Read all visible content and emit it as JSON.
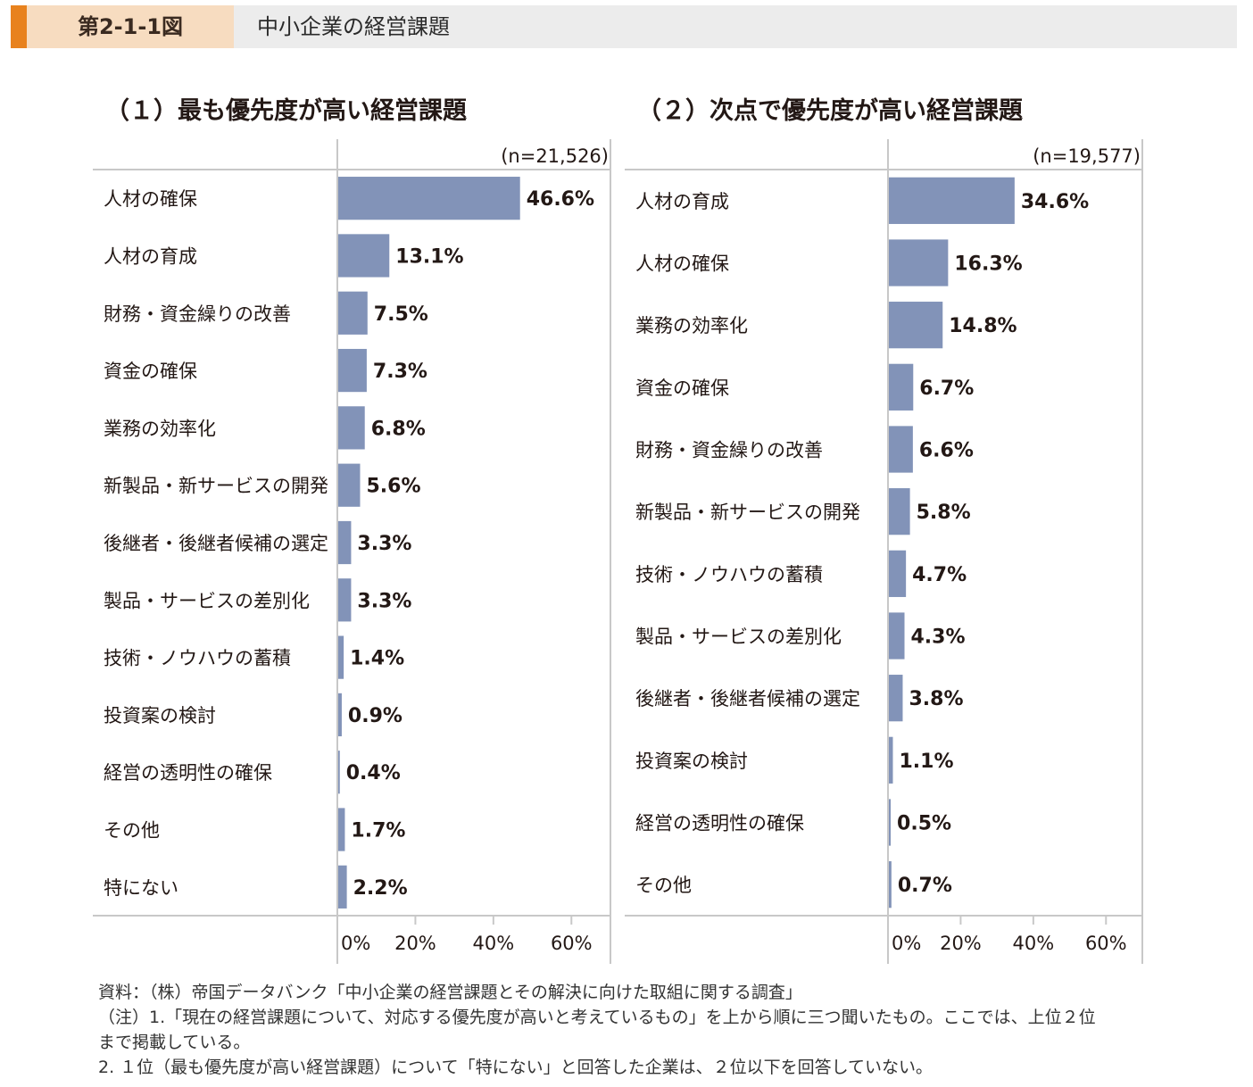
{
  "header": {
    "figure_number": "第2-1-1図",
    "title": "中小企業の経営課題",
    "accent_color": "#e8821e"
  },
  "chart_data": [
    {
      "type": "bar",
      "orientation": "horizontal",
      "title": "（１）最も優先度が高い経営課題",
      "sample_size": "(n=21,526)",
      "categories": [
        "人材の確保",
        "人材の育成",
        "財務・資金繰りの改善",
        "資金の確保",
        "業務の効率化",
        "新製品・新サービスの開発",
        "後継者・後継者候補の選定",
        "製品・サービスの差別化",
        "技術・ノウハウの蓄積",
        "投資案の検討",
        "経営の透明性の確保",
        "その他",
        "特にない"
      ],
      "values": [
        46.6,
        13.1,
        7.5,
        7.3,
        6.8,
        5.6,
        3.3,
        3.3,
        1.4,
        0.9,
        0.4,
        1.7,
        2.2
      ],
      "value_labels": [
        "46.6%",
        "13.1%",
        "7.5%",
        "7.3%",
        "6.8%",
        "5.6%",
        "3.3%",
        "3.3%",
        "1.4%",
        "0.9%",
        "0.4%",
        "1.7%",
        "2.2%"
      ],
      "xlim": [
        0,
        70
      ],
      "xticks": [
        0,
        20,
        40,
        60
      ],
      "xtick_labels": [
        "0%",
        "20%",
        "40%",
        "60%"
      ],
      "bar_color": "#8293b8"
    },
    {
      "type": "bar",
      "orientation": "horizontal",
      "title": "（２）次点で優先度が高い経営課題",
      "sample_size": "(n=19,577)",
      "categories": [
        "人材の育成",
        "人材の確保",
        "業務の効率化",
        "資金の確保",
        "財務・資金繰りの改善",
        "新製品・新サービスの開発",
        "技術・ノウハウの蓄積",
        "製品・サービスの差別化",
        "後継者・後継者候補の選定",
        "投資案の検討",
        "経営の透明性の確保",
        "その他"
      ],
      "values": [
        34.6,
        16.3,
        14.8,
        6.7,
        6.6,
        5.8,
        4.7,
        4.3,
        3.8,
        1.1,
        0.5,
        0.7
      ],
      "value_labels": [
        "34.6%",
        "16.3%",
        "14.8%",
        "6.7%",
        "6.6%",
        "5.8%",
        "4.7%",
        "4.3%",
        "3.8%",
        "1.1%",
        "0.5%",
        "0.7%"
      ],
      "xlim": [
        0,
        70
      ],
      "xticks": [
        0,
        20,
        40,
        60
      ],
      "xtick_labels": [
        "0%",
        "20%",
        "40%",
        "60%"
      ],
      "bar_color": "#8293b8"
    }
  ],
  "notes": {
    "source": "資料：（株）帝国データバンク「中小企業の経営課題とその解決に向けた取組に関する調査」",
    "note1_line1": "（注）1.「現在の経営課題について、対応する優先度が高いと考えているもの」を上から順に三つ聞いたもの。ここでは、上位２位",
    "note1_line2": "まで掲載している。",
    "note2": "2. １位（最も優先度が高い経営課題）について「特にない」と回答した企業は、２位以下を回答していない。"
  }
}
